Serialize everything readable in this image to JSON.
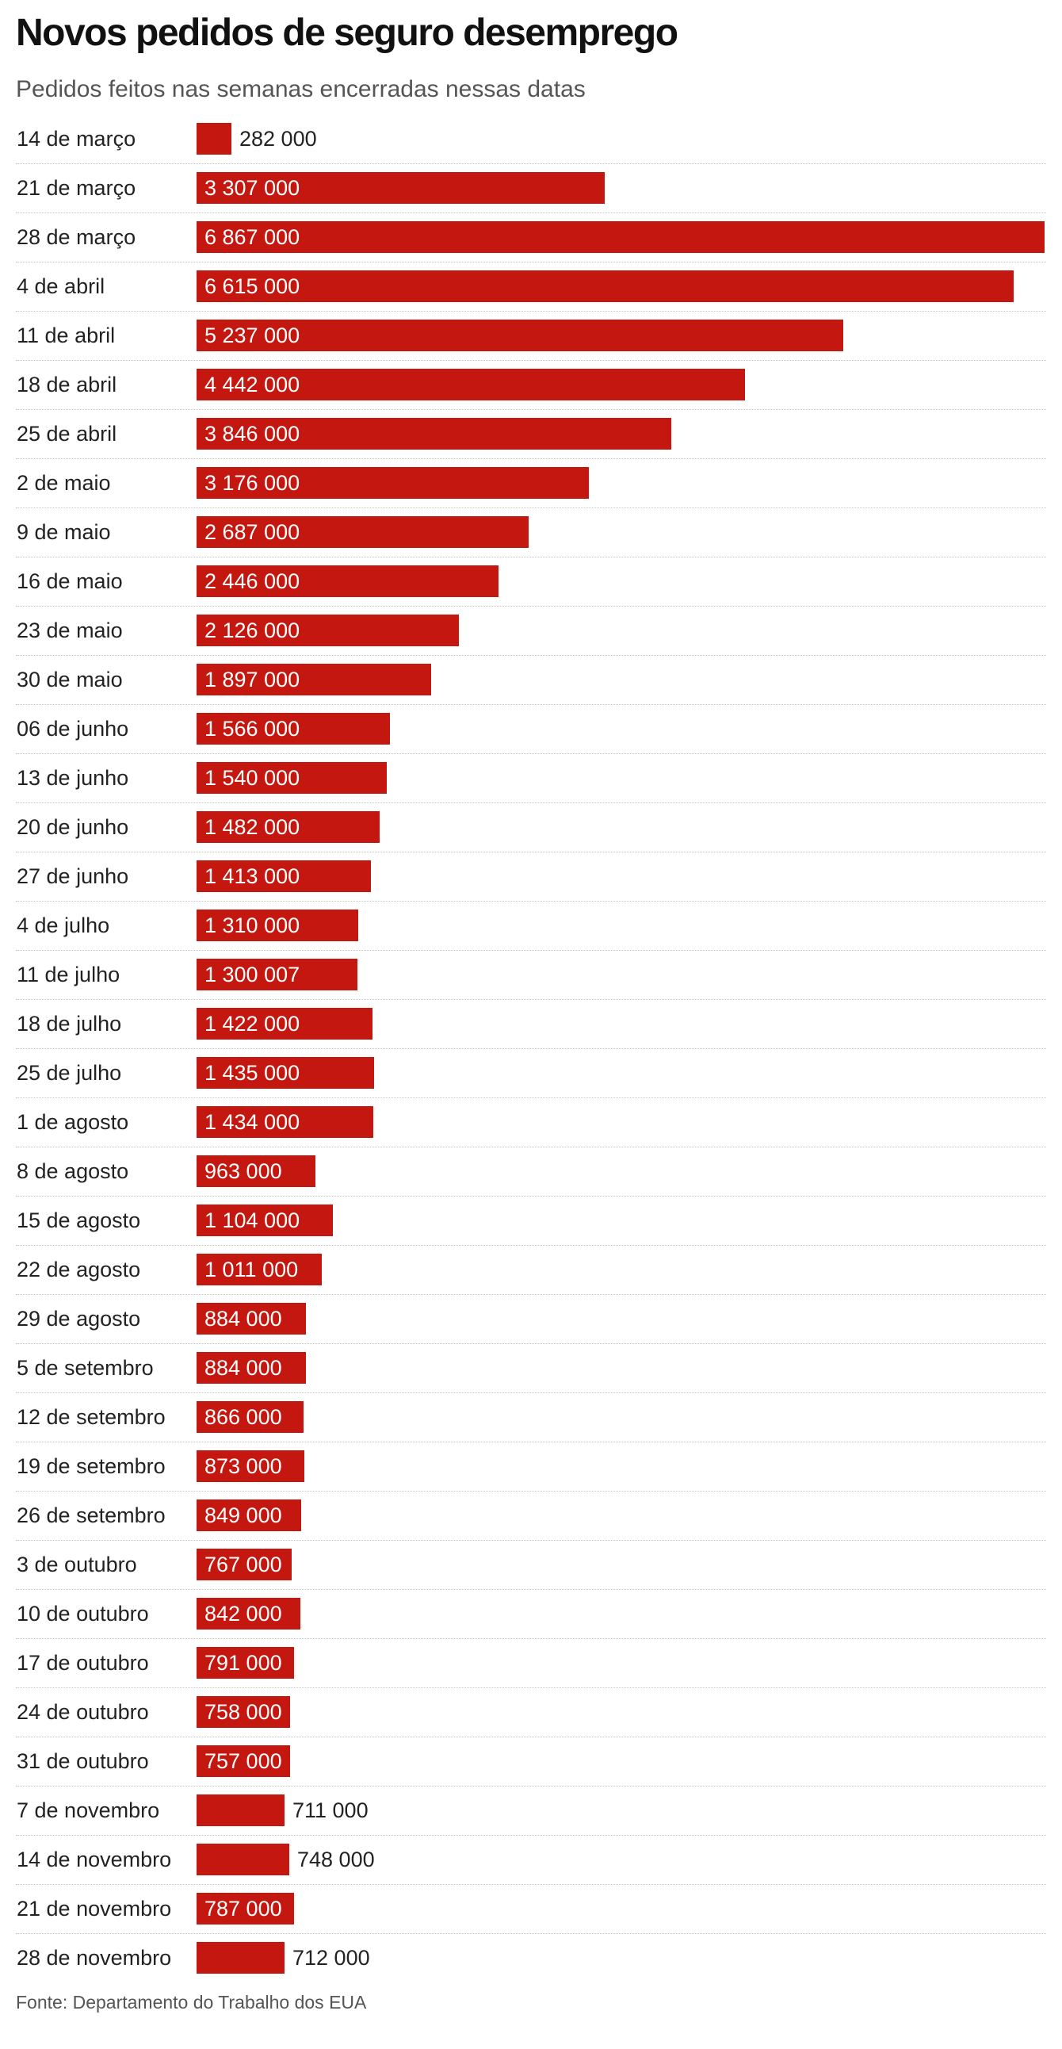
{
  "colors": {
    "bar": "#c3170f",
    "inside_label": "#ffffff",
    "outside_label": "#222222",
    "divider": "#c4c4c4"
  },
  "chart_data": {
    "type": "bar",
    "orientation": "horizontal",
    "title": "Novos pedidos de seguro desemprego",
    "subtitle": "Pedidos feitos nas semanas encerradas nessas datas",
    "source": "Fonte: Departamento do Trabalho dos EUA",
    "xlim": [
      0,
      6867000
    ],
    "grid": false,
    "categories": [
      "14 de março",
      "21 de março",
      "28 de março",
      "4 de abril",
      "11 de abril",
      "18 de abril",
      "25 de abril",
      "2 de maio",
      "9 de maio",
      "16 de maio",
      "23 de maio",
      "30 de maio",
      "06 de junho",
      "13 de junho",
      "20 de junho",
      "27 de junho",
      "4 de julho",
      "11 de julho",
      "18 de julho",
      "25 de julho",
      "1 de agosto",
      "8 de agosto",
      "15 de agosto",
      "22 de agosto",
      "29 de agosto",
      "5 de setembro",
      "12 de setembro",
      "19 de setembro",
      "26 de setembro",
      "3 de outubro",
      "10 de outubro",
      "17 de outubro",
      "24 de outubro",
      "31 de outubro",
      "7 de novembro",
      "14 de novembro",
      "21 de novembro",
      "28 de novembro"
    ],
    "values": [
      282000,
      3307000,
      6867000,
      6615000,
      5237000,
      4442000,
      3846000,
      3176000,
      2687000,
      2446000,
      2126000,
      1897000,
      1566000,
      1540000,
      1482000,
      1413000,
      1310000,
      1300007,
      1422000,
      1435000,
      1434000,
      963000,
      1104000,
      1011000,
      884000,
      884000,
      866000,
      873000,
      849000,
      767000,
      842000,
      791000,
      758000,
      757000,
      711000,
      748000,
      787000,
      712000
    ],
    "value_labels": [
      "282 000",
      "3 307 000",
      "6 867 000",
      "6 615 000",
      "5 237 000",
      "4 442 000",
      "3 846 000",
      "3 176 000",
      "2 687 000",
      "2 446 000",
      "2 126 000",
      "1 897 000",
      "1 566 000",
      "1 540 000",
      "1 482 000",
      "1 413 000",
      "1 310 000",
      "1 300 007",
      "1 422 000",
      "1 435 000",
      "1 434 000",
      "963 000",
      "1 104 000",
      "1 011 000",
      "884 000",
      "884 000",
      "866 000",
      "873 000",
      "849 000",
      "767 000",
      "842 000",
      "791 000",
      "758 000",
      "757 000",
      "711 000",
      "748 000",
      "787 000",
      "712 000"
    ]
  }
}
